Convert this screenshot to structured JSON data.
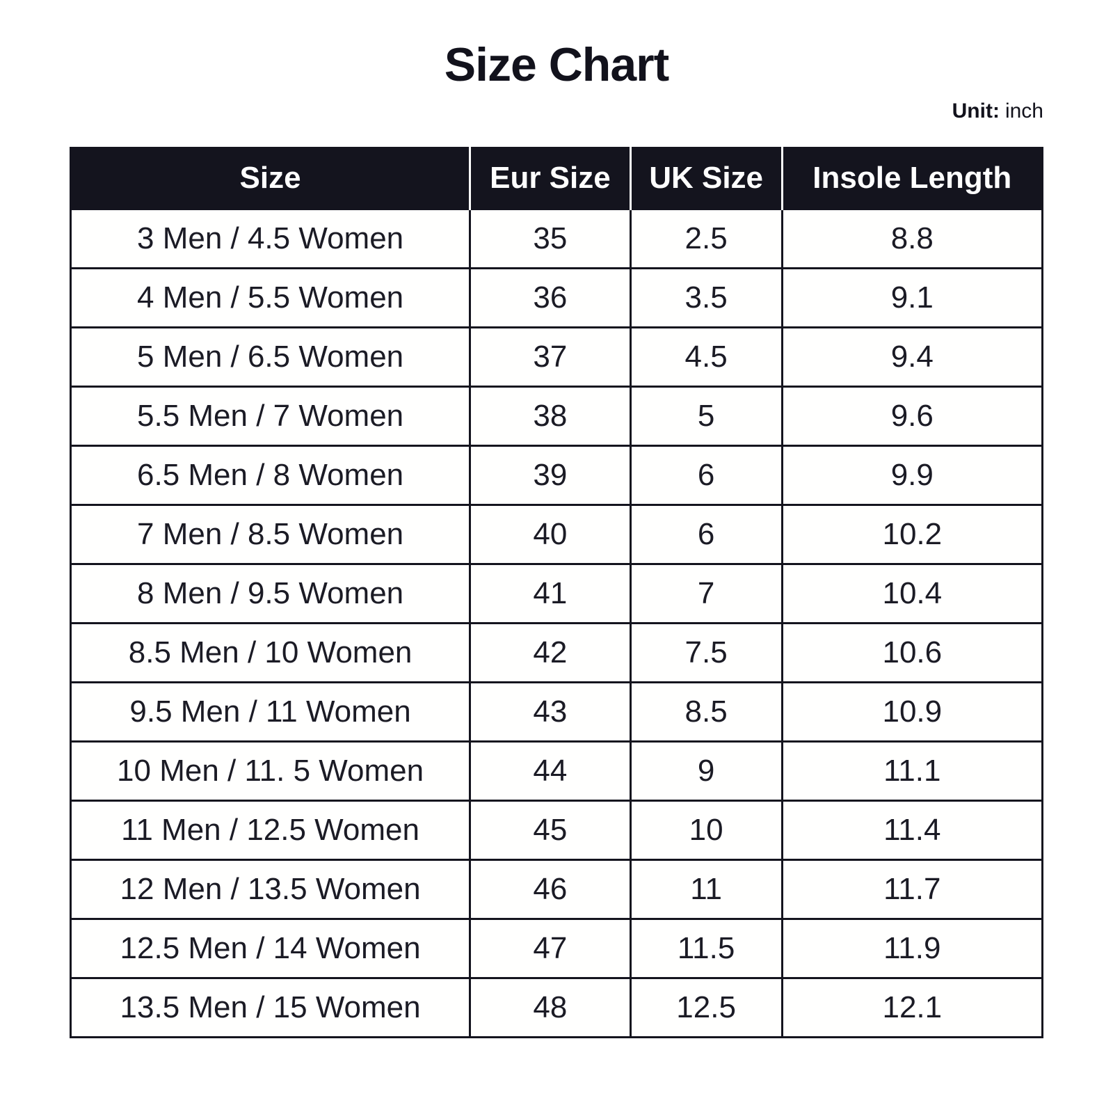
{
  "page": {
    "title": "Size Chart",
    "unit_label": "Unit:",
    "unit_value": "inch"
  },
  "colors": {
    "header_bg": "#14141e",
    "header_text": "#ffffff",
    "border": "#14141e",
    "header_divider": "#ffffff",
    "body_text": "#1b1b25",
    "title_text": "#12121c",
    "page_bg": "#ffffff"
  },
  "table": {
    "headers": [
      "Size",
      "Eur Size",
      "UK Size",
      "Insole Length"
    ],
    "rows": [
      {
        "size": "3 Men / 4.5 Women",
        "eur": "35",
        "uk": "2.5",
        "insole": "8.8"
      },
      {
        "size": "4 Men / 5.5 Women",
        "eur": "36",
        "uk": "3.5",
        "insole": "9.1"
      },
      {
        "size": "5 Men / 6.5 Women",
        "eur": "37",
        "uk": "4.5",
        "insole": "9.4"
      },
      {
        "size": "5.5 Men / 7 Women",
        "eur": "38",
        "uk": "5",
        "insole": "9.6"
      },
      {
        "size": "6.5 Men / 8 Women",
        "eur": "39",
        "uk": "6",
        "insole": "9.9"
      },
      {
        "size": "7 Men / 8.5 Women",
        "eur": "40",
        "uk": "6",
        "insole": "10.2"
      },
      {
        "size": "8 Men / 9.5 Women",
        "eur": "41",
        "uk": "7",
        "insole": "10.4"
      },
      {
        "size": "8.5 Men / 10 Women",
        "eur": "42",
        "uk": "7.5",
        "insole": "10.6"
      },
      {
        "size": "9.5 Men / 11 Women",
        "eur": "43",
        "uk": "8.5",
        "insole": "10.9"
      },
      {
        "size": "10 Men / 11. 5 Women",
        "eur": "44",
        "uk": "9",
        "insole": "11.1"
      },
      {
        "size": "11 Men / 12.5 Women",
        "eur": "45",
        "uk": "10",
        "insole": "11.4"
      },
      {
        "size": "12 Men / 13.5 Women",
        "eur": "46",
        "uk": "11",
        "insole": "11.7"
      },
      {
        "size": "12.5 Men / 14 Women",
        "eur": "47",
        "uk": "11.5",
        "insole": "11.9"
      },
      {
        "size": "13.5 Men / 15 Women",
        "eur": "48",
        "uk": "12.5",
        "insole": "12.1"
      }
    ]
  },
  "chart_data": {
    "type": "table",
    "title": "Size Chart",
    "unit": "inch",
    "columns": [
      "Size",
      "Eur Size",
      "UK Size",
      "Insole Length"
    ],
    "rows": [
      [
        "3 Men / 4.5 Women",
        "35",
        "2.5",
        "8.8"
      ],
      [
        "4 Men / 5.5 Women",
        "36",
        "3.5",
        "9.1"
      ],
      [
        "5 Men / 6.5 Women",
        "37",
        "4.5",
        "9.4"
      ],
      [
        "5.5 Men / 7 Women",
        "38",
        "5",
        "9.6"
      ],
      [
        "6.5 Men / 8 Women",
        "39",
        "6",
        "9.9"
      ],
      [
        "7 Men / 8.5 Women",
        "40",
        "6",
        "10.2"
      ],
      [
        "8 Men / 9.5 Women",
        "41",
        "7",
        "10.4"
      ],
      [
        "8.5 Men / 10 Women",
        "42",
        "7.5",
        "10.6"
      ],
      [
        "9.5 Men / 11 Women",
        "43",
        "8.5",
        "10.9"
      ],
      [
        "10 Men / 11. 5 Women",
        "44",
        "9",
        "11.1"
      ],
      [
        "11 Men / 12.5 Women",
        "45",
        "10",
        "11.4"
      ],
      [
        "12 Men / 13.5 Women",
        "46",
        "11",
        "11.7"
      ],
      [
        "12.5 Men / 14 Women",
        "47",
        "11.5",
        "11.9"
      ],
      [
        "13.5 Men / 15 Women",
        "48",
        "12.5",
        "12.1"
      ]
    ]
  }
}
